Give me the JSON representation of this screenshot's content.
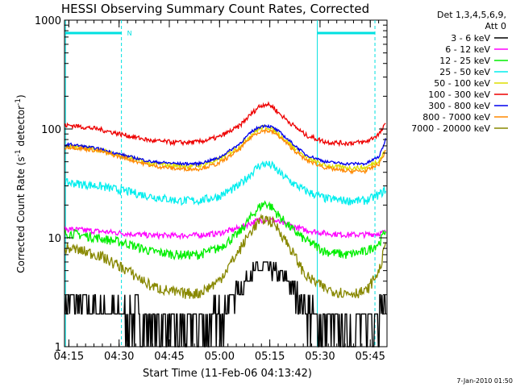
{
  "chart_data": {
    "type": "line",
    "title": "HESSI Observing Summary Count Rates, Corrected",
    "xlabel": "Start Time (11-Feb-06 04:13:42)",
    "ylabel_main": "Corrected Count Rate (s",
    "ylabel_sup1": "-1",
    "ylabel_mid": " detector",
    "ylabel_sup2": "-1",
    "ylabel_end": ")",
    "y_scale": "log",
    "ylim": [
      1,
      1000
    ],
    "xlim_minutes": [
      0,
      96.3
    ],
    "x_ticks": [
      {
        "label": "04:15",
        "t": 1.3
      },
      {
        "label": "04:30",
        "t": 16.3
      },
      {
        "label": "04:45",
        "t": 31.3
      },
      {
        "label": "05:00",
        "t": 46.3
      },
      {
        "label": "05:15",
        "t": 61.3
      },
      {
        "label": "05:30",
        "t": 76.3
      },
      {
        "label": "05:45",
        "t": 91.3
      }
    ],
    "y_ticks": [
      {
        "label": "1",
        "v": 1
      },
      {
        "label": "10",
        "v": 10
      },
      {
        "label": "100",
        "v": 100
      },
      {
        "label": "1000",
        "v": 1000
      }
    ],
    "legend_header": [
      "Det 1,3,4,5,6,9,",
      "Att 0"
    ],
    "legend_placement": "right",
    "annotation_N": "N",
    "night_intervals_minutes": [
      [
        0.3,
        17.0
      ],
      [
        75.5,
        92.7
      ]
    ],
    "series": [
      {
        "name": "3 - 6 keV",
        "color": "#000000",
        "shape": "bump_low",
        "x": [
          2,
          10,
          18,
          26,
          32,
          38,
          42,
          46,
          50,
          54,
          56,
          60,
          64,
          68,
          70,
          74,
          80,
          86,
          90,
          94,
          96
        ],
        "y": [
          2.5,
          2.3,
          2.0,
          1.8,
          1.6,
          1.5,
          1.6,
          2.0,
          2.8,
          4.0,
          4.8,
          5.5,
          4.8,
          3.5,
          2.8,
          2.0,
          1.6,
          1.5,
          1.7,
          2.2,
          2.6
        ]
      },
      {
        "name": "6 - 12 keV",
        "color": "#ff00ff",
        "shape": "bump",
        "x": [
          2,
          10,
          18,
          26,
          34,
          40,
          46,
          52,
          56,
          58,
          60,
          62,
          64,
          68,
          72,
          78,
          84,
          90,
          94,
          96
        ],
        "y": [
          12,
          11.5,
          11,
          10.5,
          10.5,
          10.6,
          11,
          12.3,
          13.8,
          14.5,
          14.8,
          14.5,
          14,
          12.8,
          11.8,
          11,
          10.7,
          10.7,
          11,
          11.3
        ]
      },
      {
        "name": "12 - 25 keV",
        "color": "#00ee00",
        "shape": "bump",
        "x": [
          2,
          10,
          18,
          26,
          34,
          40,
          46,
          52,
          56,
          58,
          60,
          62,
          64,
          68,
          72,
          78,
          84,
          90,
          94,
          96
        ],
        "y": [
          11,
          10,
          9,
          7.5,
          7,
          7,
          8,
          11,
          16,
          19,
          21,
          19,
          16,
          12,
          9.5,
          7.5,
          7,
          7.5,
          9,
          12
        ]
      },
      {
        "name": "25 - 50 keV",
        "color": "#00eeee",
        "shape": "bump",
        "x": [
          2,
          10,
          18,
          26,
          34,
          40,
          46,
          52,
          56,
          58,
          60,
          62,
          64,
          68,
          72,
          78,
          84,
          90,
          94,
          96
        ],
        "y": [
          32,
          30,
          27,
          24,
          22,
          22,
          24,
          30,
          40,
          46,
          48,
          46,
          40,
          32,
          27,
          23,
          22,
          22,
          25,
          28
        ]
      },
      {
        "name": "50 - 100 keV",
        "color": "#dddd00",
        "shape": "bump",
        "x": [
          2,
          10,
          18,
          26,
          34,
          40,
          46,
          52,
          56,
          58,
          60,
          62,
          64,
          68,
          72,
          78,
          84,
          90,
          94,
          96
        ],
        "y": [
          70,
          65,
          56,
          48,
          46,
          46,
          52,
          68,
          90,
          100,
          105,
          100,
          90,
          70,
          55,
          46,
          44,
          44,
          52,
          65
        ]
      },
      {
        "name": "100 - 300 keV",
        "color": "#ee0000",
        "shape": "bump",
        "x": [
          2,
          10,
          18,
          26,
          34,
          40,
          46,
          52,
          56,
          58,
          60,
          62,
          64,
          68,
          72,
          78,
          84,
          90,
          94,
          96
        ],
        "y": [
          108,
          100,
          88,
          78,
          75,
          76,
          84,
          105,
          140,
          160,
          170,
          162,
          140,
          110,
          88,
          76,
          74,
          76,
          90,
          112
        ]
      },
      {
        "name": "300 - 800 keV",
        "color": "#0000ee",
        "shape": "bump",
        "x": [
          2,
          10,
          18,
          26,
          34,
          40,
          46,
          52,
          56,
          58,
          60,
          62,
          64,
          68,
          72,
          78,
          84,
          90,
          94,
          96
        ],
        "y": [
          72,
          66,
          57,
          50,
          48,
          48,
          54,
          72,
          95,
          104,
          108,
          104,
          95,
          74,
          58,
          50,
          48,
          48,
          56,
          82
        ]
      },
      {
        "name": "800 - 7000 keV",
        "color": "#ff8800",
        "shape": "bump",
        "x": [
          2,
          10,
          18,
          26,
          34,
          40,
          46,
          52,
          56,
          58,
          60,
          62,
          64,
          68,
          72,
          78,
          84,
          90,
          94,
          96
        ],
        "y": [
          68,
          63,
          54,
          46,
          43,
          43,
          48,
          64,
          86,
          94,
          97,
          94,
          86,
          66,
          52,
          44,
          41,
          41,
          48,
          64
        ]
      },
      {
        "name": "7000 - 20000 keV",
        "color": "#888800",
        "shape": "bump",
        "x": [
          2,
          10,
          18,
          26,
          34,
          40,
          46,
          52,
          56,
          58,
          60,
          62,
          64,
          68,
          72,
          78,
          84,
          90,
          94,
          96
        ],
        "y": [
          8,
          7,
          5.2,
          3.6,
          3.1,
          3.1,
          4,
          7.5,
          12,
          14,
          15,
          14,
          12,
          7.5,
          4.5,
          3.4,
          3.1,
          3.2,
          5,
          9
        ]
      }
    ],
    "footer_timestamp": "7-Jan-2010 01:50"
  }
}
